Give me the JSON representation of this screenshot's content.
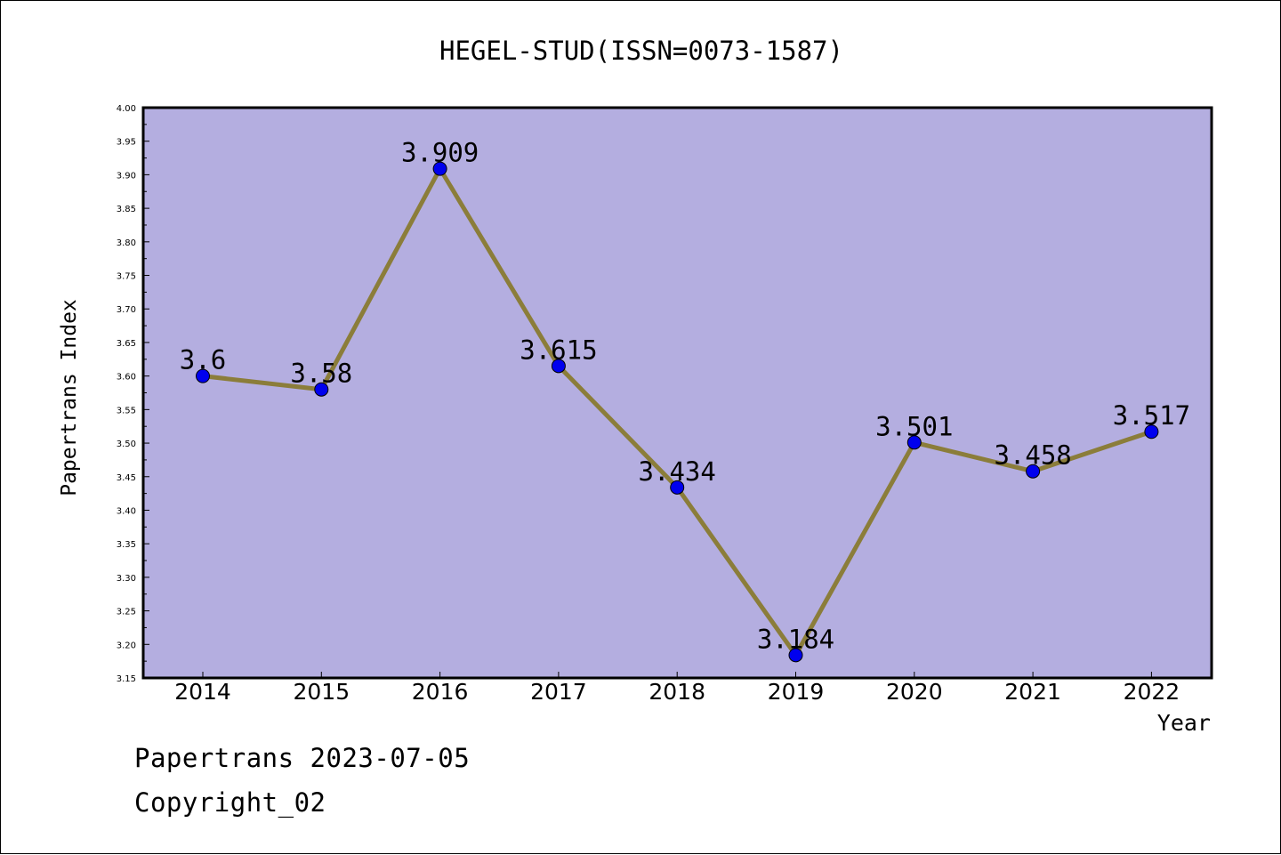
{
  "chart_data": {
    "type": "line",
    "title": "HEGEL-STUD(ISSN=0073-1587)",
    "xlabel": "Year",
    "ylabel": "Papertrans Index",
    "categories": [
      "2014",
      "2015",
      "2016",
      "2017",
      "2018",
      "2019",
      "2020",
      "2021",
      "2022"
    ],
    "series": [
      {
        "values": [
          3.6,
          3.58,
          3.909,
          3.615,
          3.434,
          3.184,
          3.501,
          3.458,
          3.517
        ],
        "labels": [
          "3.6",
          "3.58",
          "3.909",
          "3.615",
          "3.434",
          "3.184",
          "3.501",
          "3.458",
          "3.517"
        ]
      }
    ],
    "ylim": [
      3.15,
      4.0
    ],
    "yticks": [
      "3.15",
      "3.20",
      "3.25",
      "3.30",
      "3.35",
      "3.40",
      "3.45",
      "3.50",
      "3.55",
      "3.60",
      "3.65",
      "3.70",
      "3.75",
      "3.80",
      "3.85",
      "3.90",
      "3.95",
      "4.00"
    ],
    "grid": false,
    "colors": {
      "plot_background": "#b4aee0",
      "line": "#8b7d3a",
      "marker": "#0000ee"
    }
  },
  "footer": {
    "date_line": "Papertrans 2023-07-05",
    "copyright": "Copyright_02"
  }
}
